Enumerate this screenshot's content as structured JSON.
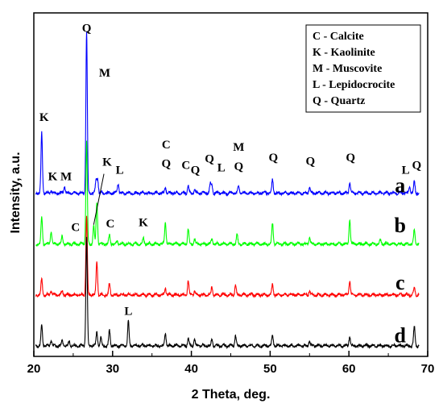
{
  "chart_data": {
    "type": "line",
    "xlabel": "2 Theta, deg.",
    "ylabel": "Intensity, a.u.",
    "xlim": [
      20,
      70
    ],
    "xticks": [
      20,
      30,
      40,
      50,
      60,
      70
    ],
    "y_ticks_shown": false,
    "legend": {
      "placement": "top-right",
      "entries": [
        "C - Calcite",
        "K - Kaolinite",
        "M - Muscovite",
        "L - Lepidocrocite",
        "Q - Quartz"
      ]
    },
    "series": [
      {
        "name": "a",
        "color": "#0000ff",
        "offset": 2.4,
        "peaks": [
          [
            21.0,
            0.95
          ],
          [
            22.2,
            0.05
          ],
          [
            23.9,
            0.1
          ],
          [
            26.7,
            2.55
          ],
          [
            27.9,
            0.18
          ],
          [
            28.1,
            0.22
          ],
          [
            30.7,
            0.15
          ],
          [
            36.7,
            0.1
          ],
          [
            39.6,
            0.12
          ],
          [
            40.4,
            0.06
          ],
          [
            42.4,
            0.14
          ],
          [
            42.6,
            0.12
          ],
          [
            46.0,
            0.11
          ],
          [
            50.3,
            0.21
          ],
          [
            55.0,
            0.09
          ],
          [
            60.1,
            0.16
          ],
          [
            67.7,
            0.1
          ],
          [
            68.3,
            0.18
          ]
        ]
      },
      {
        "name": "b",
        "color": "#00ff00",
        "offset": 1.6,
        "peaks": [
          [
            21.0,
            0.42
          ],
          [
            22.2,
            0.2
          ],
          [
            23.6,
            0.12
          ],
          [
            26.7,
            1.62
          ],
          [
            27.6,
            0.28
          ],
          [
            28.0,
            0.65
          ],
          [
            29.6,
            0.14
          ],
          [
            30.6,
            0.05
          ],
          [
            33.9,
            0.09
          ],
          [
            36.7,
            0.34
          ],
          [
            39.6,
            0.24
          ],
          [
            40.4,
            0.08
          ],
          [
            42.6,
            0.08
          ],
          [
            45.8,
            0.14
          ],
          [
            50.3,
            0.33
          ],
          [
            55.0,
            0.1
          ],
          [
            60.1,
            0.38
          ],
          [
            64.0,
            0.06
          ],
          [
            68.3,
            0.22
          ]
        ]
      },
      {
        "name": "c",
        "color": "#ff0000",
        "offset": 0.8,
        "peaks": [
          [
            21.0,
            0.25
          ],
          [
            22.2,
            0.07
          ],
          [
            23.6,
            0.06
          ],
          [
            26.7,
            1.25
          ],
          [
            28.0,
            0.53
          ],
          [
            29.6,
            0.18
          ],
          [
            36.7,
            0.11
          ],
          [
            39.6,
            0.22
          ],
          [
            40.4,
            0.06
          ],
          [
            42.6,
            0.12
          ],
          [
            45.6,
            0.16
          ],
          [
            50.3,
            0.17
          ],
          [
            55.0,
            0.06
          ],
          [
            60.1,
            0.22
          ],
          [
            68.3,
            0.11
          ]
        ]
      },
      {
        "name": "d",
        "color": "#000000",
        "offset": 0.0,
        "peaks": [
          [
            21.0,
            0.32
          ],
          [
            22.2,
            0.09
          ],
          [
            23.6,
            0.08
          ],
          [
            24.5,
            0.07
          ],
          [
            26.7,
            1.72
          ],
          [
            28.0,
            0.22
          ],
          [
            28.5,
            0.12
          ],
          [
            29.6,
            0.24
          ],
          [
            32.0,
            0.38
          ],
          [
            36.7,
            0.2
          ],
          [
            39.6,
            0.12
          ],
          [
            40.4,
            0.1
          ],
          [
            42.6,
            0.1
          ],
          [
            45.6,
            0.16
          ],
          [
            50.3,
            0.16
          ],
          [
            55.0,
            0.08
          ],
          [
            60.1,
            0.15
          ],
          [
            68.3,
            0.3
          ]
        ]
      }
    ],
    "peak_annotations": [
      {
        "text": "Q",
        "x": 26.7,
        "y": 4.95
      },
      {
        "text": "M",
        "x": 29.0,
        "y": 4.25
      },
      {
        "text": "K",
        "x": 21.3,
        "y": 3.55
      },
      {
        "text": "K",
        "x": 22.4,
        "y": 2.62
      },
      {
        "text": "M",
        "x": 24.1,
        "y": 2.62
      },
      {
        "text": "K",
        "x": 29.3,
        "y": 2.85
      },
      {
        "text": "L",
        "x": 30.9,
        "y": 2.72
      },
      {
        "text": "C",
        "x": 36.8,
        "y": 3.12
      },
      {
        "text": "Q",
        "x": 36.8,
        "y": 2.82
      },
      {
        "text": "C",
        "x": 39.3,
        "y": 2.8
      },
      {
        "text": "Q",
        "x": 40.5,
        "y": 2.72
      },
      {
        "text": "Q",
        "x": 42.3,
        "y": 2.9
      },
      {
        "text": "L",
        "x": 43.8,
        "y": 2.76
      },
      {
        "text": "M",
        "x": 46.0,
        "y": 3.08
      },
      {
        "text": "Q",
        "x": 46.0,
        "y": 2.78
      },
      {
        "text": "Q",
        "x": 50.4,
        "y": 2.92
      },
      {
        "text": "Q",
        "x": 55.1,
        "y": 2.86
      },
      {
        "text": "Q",
        "x": 60.2,
        "y": 2.92
      },
      {
        "text": "L",
        "x": 67.2,
        "y": 2.72
      },
      {
        "text": "Q",
        "x": 68.6,
        "y": 2.8
      },
      {
        "text": "C",
        "x": 25.3,
        "y": 1.82
      },
      {
        "text": "C",
        "x": 29.7,
        "y": 1.88
      },
      {
        "text": "K",
        "x": 33.9,
        "y": 1.9
      },
      {
        "text": "L",
        "x": 32.0,
        "y": 0.5
      }
    ],
    "trace_labels": [
      {
        "text": "a",
        "x": 66.5,
        "y": 2.43
      },
      {
        "text": "b",
        "x": 66.5,
        "y": 1.8
      },
      {
        "text": "c",
        "x": 66.5,
        "y": 0.9
      },
      {
        "text": "d",
        "x": 66.5,
        "y": 0.07
      }
    ]
  }
}
